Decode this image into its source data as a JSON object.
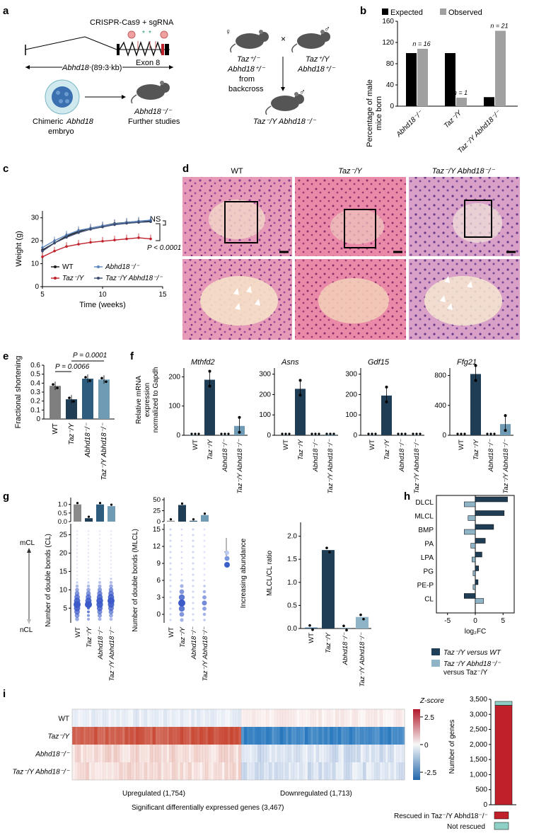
{
  "panels": {
    "a": {
      "label": "a",
      "crispr_label": "CRISPR-Cas9 + sgRNA",
      "gene_label": "Abhd18",
      "gene_size": "(89.3 kb)",
      "exon_label": "Exon 8",
      "embryo_label_1": "Chimeric",
      "embryo_label_2": "Abhd18",
      "embryo_label_3": "embryo",
      "mouse_ko_label": "Abhd18⁻/⁻",
      "further_label": "Further studies",
      "female_label_1": "Taz⁺/⁻",
      "female_label_2": "Abhd18⁺/⁻",
      "female_label_3": "from",
      "female_label_4": "backcross",
      "male_label_1": "Taz⁺/Y",
      "male_label_2": "Abhd18⁺/⁻",
      "cross_symbol": "×",
      "female_symbol": "♀",
      "male_symbol": "♂",
      "offspring_label": "Taz⁻/Y Abhd18⁻/⁻"
    },
    "b": {
      "label": "b",
      "legend_expected": "Expected",
      "legend_observed": "Observed",
      "color_expected": "#000000",
      "color_observed": "#a0a0a0",
      "n_labels": [
        "n = 16",
        "n = 1",
        "n = 21"
      ]
    },
    "c": {
      "label": "c",
      "ns_label": "NS",
      "p_label": "P < 0.0001",
      "legend": [
        "WT",
        "Taz⁻/Y",
        "Abhd18⁻/⁻",
        "Taz⁻/Y Abhd18⁻/⁻"
      ]
    },
    "d": {
      "label": "d",
      "columns": [
        "WT",
        "Taz⁻/Y",
        "Taz⁻/Y Abhd18⁻/⁻"
      ]
    },
    "e": {
      "label": "e",
      "p1": "P = 0.0066",
      "p2": "P = 0.0001"
    },
    "f": {
      "label": "f",
      "ylabel_1": "Relative mRNA",
      "ylabel_2": "expression",
      "ylabel_3": "normalized to Gapdh"
    },
    "g": {
      "label": "g",
      "ylabel_cl": "Number of double bonds (CL)",
      "ylabel_mlcl": "Number of double bonds (MLCL)",
      "mcl_label": "mCL",
      "ncl_label": "nCL",
      "abundance_label": "Increasing abundance",
      "ratio_ylabel": "MLCL/CL ratio"
    },
    "h": {
      "label": "h",
      "legend_1": "Taz⁻/Y versus WT",
      "legend_2a": "Taz⁻/Y Abhd18⁻/⁻",
      "legend_2b": "versus Taz⁻/Y",
      "color_1": "#1f3d55",
      "color_2": "#8fb4c8"
    },
    "i": {
      "label": "i",
      "zscore_label": "Z-score",
      "rows": [
        "WT",
        "Taz⁻/Y",
        "Abhd18⁻/⁻",
        "Taz⁻/Y Abhd18⁻/⁻"
      ],
      "upregulated": "Upregulated (1,754)",
      "downregulated": "Downregulated (1,713)",
      "significant": "Significant differentially expressed genes (3,467)",
      "bar_ylabel": "Number of genes",
      "rescued_label": "Rescued in Taz⁻/Y Abhd18⁻/⁻",
      "not_rescued_label": "Not rescued",
      "color_rescued": "#c0202a",
      "color_not_rescued": "#8fd0c6"
    }
  },
  "chart_data": [
    {
      "id": "b",
      "type": "bar",
      "ylabel": "Percentage of male mice born",
      "categories": [
        "Abhd18⁻/⁻",
        "Taz⁻/Y",
        "Taz⁻/Y Abhd18⁻/⁻"
      ],
      "series": [
        {
          "name": "Expected",
          "values": [
            100,
            100,
            17
          ]
        },
        {
          "name": "Observed",
          "values": [
            108,
            16,
            142
          ]
        }
      ],
      "ylim": [
        0,
        160
      ],
      "yticks": [
        0,
        40,
        80,
        120,
        160
      ]
    },
    {
      "id": "c",
      "type": "line",
      "xlabel": "Time (weeks)",
      "ylabel": "Weight (g)",
      "x": [
        5,
        6,
        7,
        8,
        9,
        10,
        11,
        12,
        13,
        14
      ],
      "xticks": [
        5,
        10,
        15
      ],
      "yticks": [
        0,
        10,
        20,
        30
      ],
      "xlim": [
        5,
        15
      ],
      "ylim": [
        0,
        33
      ],
      "series": [
        {
          "name": "WT",
          "color": "#1a1a1a",
          "values": [
            16,
            19,
            22,
            24,
            25.5,
            26.5,
            27.5,
            28,
            28.5,
            28.7
          ]
        },
        {
          "name": "Taz⁻/Y",
          "color": "#c0202a",
          "values": [
            13,
            15.5,
            17.5,
            18.5,
            19.3,
            19.8,
            20.3,
            20.8,
            21.3,
            20.8
          ]
        },
        {
          "name": "Abhd18⁻/⁻",
          "color": "#5a86c0",
          "values": [
            17,
            20,
            22.5,
            24.5,
            25.5,
            26.5,
            27.3,
            28,
            28.5,
            29
          ]
        },
        {
          "name": "Taz⁻/Y Abhd18⁻/⁻",
          "color": "#3a4a70",
          "values": [
            15.5,
            19,
            21.5,
            23.5,
            25,
            26,
            27,
            27.6,
            28,
            28.3
          ]
        }
      ]
    },
    {
      "id": "e",
      "type": "bar",
      "ylabel": "Fractional shortening",
      "categories": [
        "WT",
        "Taz⁻/Y",
        "Abhd18⁻/⁻",
        "Taz⁻/Y Abhd18⁻/⁻"
      ],
      "values": [
        0.37,
        0.22,
        0.45,
        0.44
      ],
      "colors": [
        "#7f7f7f",
        "#1f3d55",
        "#2e5c7e",
        "#6f9bb5"
      ],
      "ylim": [
        0,
        0.6
      ],
      "yticks": [
        0,
        0.1,
        0.2,
        0.3,
        0.4,
        0.5,
        0.6
      ]
    },
    {
      "id": "f",
      "type": "bar",
      "ylabel": "Relative mRNA expression normalized to Gapdh",
      "categories": [
        "WT",
        "Taz⁻/Y",
        "Abhd18⁻/⁻",
        "Taz⁻/Y Abhd18⁻/⁻"
      ],
      "genes": [
        {
          "name": "Mthfd2",
          "values": [
            1,
            190,
            1,
            32
          ],
          "yticks": [
            0,
            100,
            200
          ],
          "ylim": [
            0,
            230
          ]
        },
        {
          "name": "Asns",
          "values": [
            1,
            228,
            1,
            5
          ],
          "yticks": [
            0,
            100,
            200,
            300
          ],
          "ylim": [
            0,
            330
          ]
        },
        {
          "name": "Gdf15",
          "values": [
            1,
            195,
            1,
            1
          ],
          "yticks": [
            0,
            100,
            200,
            300
          ],
          "ylim": [
            0,
            330
          ]
        },
        {
          "name": "Ffg21",
          "values": [
            1,
            820,
            2,
            150
          ],
          "yticks": [
            0,
            400,
            800
          ],
          "ylim": [
            0,
            900
          ]
        }
      ]
    },
    {
      "id": "g-ratio",
      "type": "bar",
      "ylabel": "MLCL/CL ratio",
      "categories": [
        "WT",
        "Taz⁻/Y",
        "Abhd18⁻/⁻",
        "Taz⁻/Y Abhd18⁻/⁻"
      ],
      "values": [
        0.02,
        1.7,
        0.01,
        0.25
      ],
      "ylim": [
        0,
        2.3
      ],
      "yticks": [
        0,
        0.5,
        1.0,
        1.5,
        2.0
      ]
    },
    {
      "id": "g-top-cl",
      "type": "bar",
      "values": [
        1.0,
        0.2,
        1.0,
        0.9
      ],
      "yticks": [
        0,
        0.5,
        1.0
      ],
      "ylim": [
        0,
        1.4
      ]
    },
    {
      "id": "g-top-mlcl",
      "type": "bar",
      "values": [
        2,
        38,
        2,
        15
      ],
      "yticks": [
        0,
        25,
        50
      ],
      "ylim": [
        0,
        55
      ]
    },
    {
      "id": "g-dots-cl",
      "type": "scatter",
      "yticks": [
        5,
        10,
        15,
        20,
        25
      ],
      "ylim": [
        1,
        28
      ]
    },
    {
      "id": "g-dots-mlcl",
      "type": "scatter",
      "yticks": [
        0,
        3,
        6,
        9,
        12,
        15
      ],
      "ylim": [
        -1.5,
        16
      ]
    },
    {
      "id": "h",
      "type": "bar",
      "orientation": "horizontal",
      "xlabel": "log₂FC",
      "categories": [
        "DLCL",
        "MLCL",
        "BMP",
        "PA",
        "LPA",
        "PG",
        "PE-P",
        "CL"
      ],
      "series": [
        {
          "name": "Taz⁻/Y versus WT",
          "values": [
            5.8,
            5.2,
            3.3,
            1.8,
            1.2,
            0.6,
            0.5,
            -2.0
          ]
        },
        {
          "name": "Taz⁻/Y Abhd18⁻/⁻ versus Taz⁻/Y",
          "values": [
            -2.0,
            -1.3,
            -2.0,
            -0.8,
            -0.6,
            -0.4,
            -0.4,
            1.5
          ]
        }
      ],
      "xticks": [
        -5,
        0,
        5
      ],
      "xlim": [
        -7,
        7
      ]
    },
    {
      "id": "i-heatmap",
      "type": "heatmap",
      "rows": [
        "WT",
        "Taz⁻/Y",
        "Abhd18⁻/⁻",
        "Taz⁻/Y Abhd18⁻/⁻"
      ],
      "colorbar_ticks": [
        2.5,
        0,
        -2.5
      ],
      "upregulated": 1754,
      "downregulated": 1713
    },
    {
      "id": "i-bar",
      "type": "bar",
      "stacked": true,
      "ylabel": "Number of genes",
      "series": [
        {
          "name": "Rescued in Taz⁻/Y Abhd18⁻/⁻",
          "values": [
            3300
          ]
        },
        {
          "name": "Not rescued",
          "values": [
            130
          ]
        }
      ],
      "ylim": [
        0,
        3500
      ],
      "yticks": [
        0,
        500,
        1000,
        1500,
        2000,
        2500,
        3000,
        3500
      ]
    }
  ]
}
